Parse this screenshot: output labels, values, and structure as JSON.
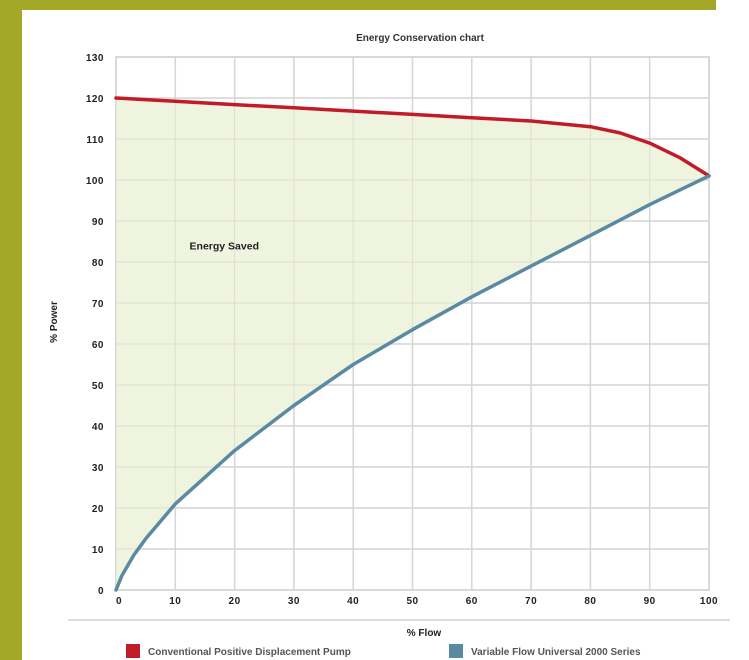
{
  "chart_data": {
    "type": "area",
    "title": "Energy Conservation chart",
    "xlabel": "% Flow",
    "ylabel": "% Power",
    "xlim": [
      0,
      100
    ],
    "ylim": [
      0,
      130
    ],
    "xticks": [
      0,
      10,
      20,
      30,
      40,
      50,
      60,
      70,
      80,
      90,
      100
    ],
    "yticks": [
      0,
      10,
      20,
      30,
      40,
      50,
      60,
      70,
      80,
      90,
      100,
      110,
      120,
      130
    ],
    "grid": true,
    "legend_position": "bottom",
    "annotation": {
      "text": "Energy Saved",
      "x": 10.5,
      "y": 84
    },
    "fill_color": "#eef3dc",
    "series": [
      {
        "name": "Conventional Positive Displacement Pump",
        "color": "#c11b2a",
        "x": [
          0,
          10,
          20,
          30,
          40,
          50,
          60,
          70,
          80,
          85,
          90,
          95,
          100
        ],
        "y": [
          120,
          119.2,
          118.4,
          117.6,
          116.8,
          116,
          115.2,
          114.4,
          113,
          111.5,
          109,
          105.5,
          101
        ]
      },
      {
        "name": "Variable Flow Universal 2000 Series",
        "color": "#5a8aa2",
        "x": [
          0,
          1,
          3,
          5,
          10,
          20,
          30,
          40,
          50,
          60,
          70,
          80,
          90,
          100
        ],
        "y": [
          0,
          3.5,
          8.5,
          12.5,
          21,
          34,
          45,
          55,
          63.5,
          71.5,
          79,
          86.5,
          94,
          101
        ]
      }
    ]
  }
}
